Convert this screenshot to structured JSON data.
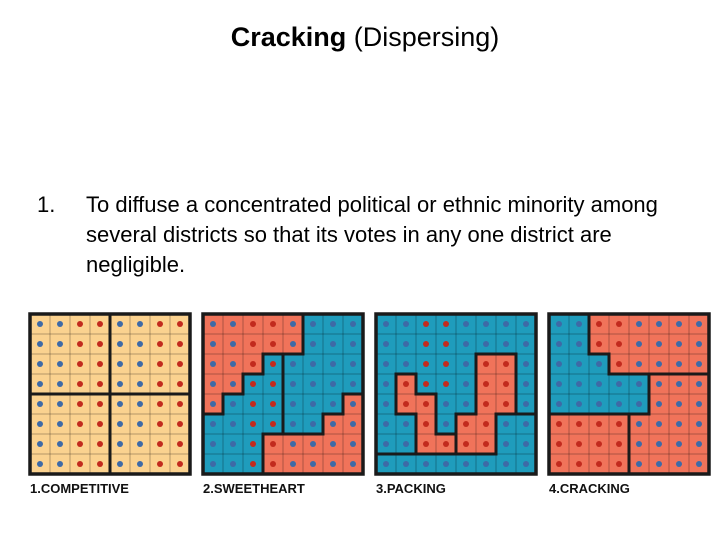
{
  "slide": {
    "title_bold": "Cracking",
    "title_rest": " (Dispersing)",
    "bullet_number": "1.",
    "bullet_text": "To diffuse a concentrated political or ethnic minority among several districts so that its votes in any one district are negligible."
  },
  "colors": {
    "neutral_fill": "#fbd28f",
    "red_fill": "#f0735a",
    "blue_fill": "#1f9cbc",
    "red_dot": "#c22a1e",
    "blue_dot": "#3e6aa6",
    "border": "#1a1a1a"
  },
  "panels": [
    {
      "label": "1.COMPETITIVE",
      "fill": [
        "NNNNNNNN",
        "NNNNNNNN",
        "NNNNNNNN",
        "NNNNNNNN",
        "NNNNNNNN",
        "NNNNNNNN",
        "NNNNNNNN",
        "NNNNNNNN"
      ],
      "dots": [
        "BBRRBBRR",
        "BBRRBBRR",
        "BBRRBBRR",
        "BBRRBBRR",
        "BBRRBBRR",
        "BBRRBBRR",
        "BBRRBBRR",
        "BBRRBBRR"
      ],
      "districts": [
        "AAAABBBB",
        "AAAABBBB",
        "AAAABBBB",
        "AAAABBBB",
        "CCCCDDDD",
        "CCCCDDDD",
        "CCCCDDDD",
        "CCCCDDDD"
      ]
    },
    {
      "label": "2.SWEETHEART",
      "fill": [
        "RRRRRBBB",
        "RRRRRBBB",
        "RRRBBBBB",
        "RRBBBBBB",
        "RBBBBBBR",
        "BBBBBBRR",
        "BBBRRRRR",
        "BBBRRRRR"
      ],
      "dots": [
        "BBRRBBBB",
        "BBRRBBBB",
        "BBRRBBBB",
        "BBRRBBBB",
        "BBRRBBBB",
        "BBRRBBBB",
        "BBRRBBBB",
        "BBRRBBBB"
      ],
      "districts": [
        "AAAAABBB",
        "AAAAABBB",
        "AAACBBBB",
        "AACCBBBB",
        "ACCCBBBD",
        "CCCCBBDD",
        "CCCDDDDD",
        "CCCDDDDD"
      ]
    },
    {
      "label": "3.PACKING",
      "fill": [
        "BBBBBBBB",
        "BBBBBBBB",
        "BBBBBRRB",
        "BRBBBRRB",
        "BRRBBRRB",
        "BBRBRRBB",
        "BBRRRRBB",
        "BBBBBBBB"
      ],
      "dots": [
        "BBRRBBBB",
        "BBRRBBBB",
        "BBRRBRRB",
        "BRRRBRRB",
        "BRRBBRRB",
        "BBRBRRBB",
        "BBRRRRBB",
        "BBBBBBBB"
      ],
      "districts": [
        "AAAAAAAA",
        "AAAAAAAA",
        "AAAAABBA",
        "ACAAABBA",
        "ACCAABBA",
        "AACABBDD",
        "AACCBBDD",
        "DDDDDDDD"
      ]
    },
    {
      "label": "4.CRACKING",
      "fill": [
        "BBRRRRRR",
        "BBRRRRRR",
        "BBBRRRRR",
        "BBBBBRRR",
        "BBBBBRRR",
        "RRRRRRRR",
        "RRRRRRRR",
        "RRRRRRRR"
      ],
      "dots": [
        "BBRRBBBB",
        "BBRRBBBB",
        "BBBRBBBB",
        "BBBBBBBB",
        "BBBBBBBB",
        "RRRRBBBB",
        "RRRRBBBB",
        "RRRRBBBB"
      ],
      "districts": [
        "AABBBBBB",
        "AABBBBBB",
        "AAABBBBB",
        "AAAAACCC",
        "AAAAACCC",
        "DDDDCCCC",
        "DDDDCCCC",
        "DDDDCCCC"
      ]
    }
  ]
}
